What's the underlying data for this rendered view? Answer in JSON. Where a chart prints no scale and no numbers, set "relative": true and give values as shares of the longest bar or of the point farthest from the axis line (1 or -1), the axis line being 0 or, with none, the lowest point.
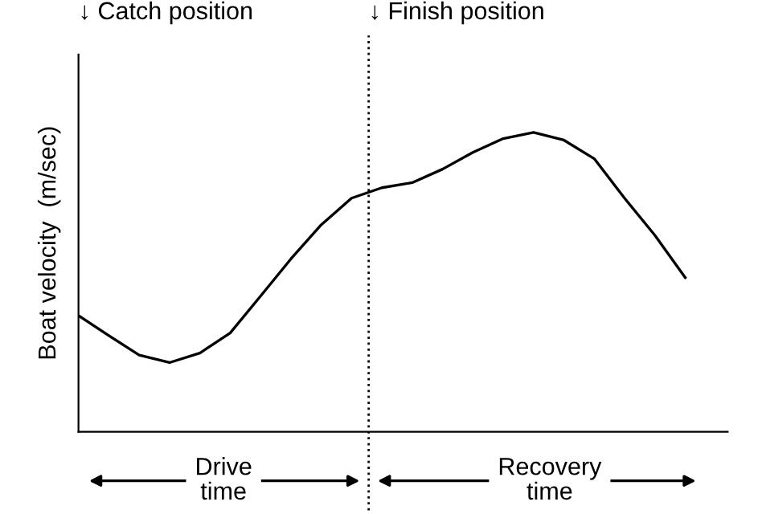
{
  "chart_data": {
    "type": "line",
    "relative": true,
    "ylabel": "Boat velocity  (m/sec)",
    "categories": [
      null,
      null,
      null,
      null,
      null,
      null,
      null,
      null,
      null,
      null,
      null,
      null,
      null,
      null,
      null,
      null,
      null,
      null,
      null,
      null,
      null
    ],
    "series": [
      {
        "color": "#000000",
        "values": [
          0.388,
          0.321,
          0.256,
          0.231,
          0.263,
          0.33,
          0.453,
          0.577,
          0.691,
          0.78,
          0.815,
          0.832,
          0.877,
          0.933,
          0.979,
          1,
          0.974,
          0.912,
          0.78,
          0.656,
          0.515
        ]
      }
    ],
    "annotations": [
      "↓ Catch position",
      "↓ Finish position",
      "Drive\ntime",
      "Recovery\ntime"
    ],
    "marker": "none",
    "line_style": "solid",
    "legend": false
  }
}
